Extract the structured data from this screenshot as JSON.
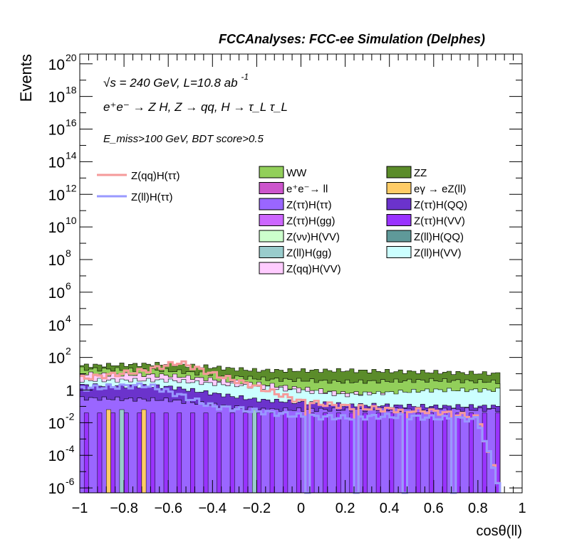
{
  "header": {
    "title": "FCCAnalyses: FCC-ee Simulation (Delphes)",
    "ecm_line": "√s = 240 GeV, L=10.8 ab",
    "ecm_line_sup": "-1",
    "process_line": "e⁺e⁻ → Z H, Z → qq, H → τ_L τ_L",
    "cut_line": "E_miss>100 GeV, BDT score>0.5"
  },
  "chart_data": {
    "type": "histogram",
    "xlabel": "cosθ(ll)",
    "ylabel": "Events",
    "xlim": [
      -1,
      1
    ],
    "ylim": [
      1e-06,
      1e+21
    ],
    "log_y": true,
    "x_ticks": [
      "−1",
      "−0.8",
      "−0.6",
      "−0.4",
      "−0.2",
      "0",
      "0.2",
      "0.4",
      "0.6",
      "0.8",
      "1"
    ],
    "y_ticks": [
      {
        "base": "10",
        "exp": "20"
      },
      {
        "base": "10",
        "exp": "18"
      },
      {
        "base": "10",
        "exp": "16"
      },
      {
        "base": "10",
        "exp": "14"
      },
      {
        "base": "10",
        "exp": "12"
      },
      {
        "base": "10",
        "exp": "10"
      },
      {
        "base": "10",
        "exp": "8"
      },
      {
        "base": "10",
        "exp": "6"
      },
      {
        "base": "10",
        "exp": "4"
      },
      {
        "base": "10",
        "exp": "2"
      },
      {
        "base": "1",
        "exp": ""
      },
      {
        "base": "10",
        "exp": "-2"
      },
      {
        "base": "10",
        "exp": "-4"
      },
      {
        "base": "10",
        "exp": "-6"
      }
    ],
    "bin_edges_range": [
      -1,
      0.9
    ],
    "stack_log10_upper": [
      {
        "name": "ZZ",
        "color": "#5b8c2a",
        "at_x": [
          [
            -1.0,
            1.5
          ],
          [
            -0.6,
            1.6
          ],
          [
            -0.2,
            1.2
          ],
          [
            0.2,
            1.2
          ],
          [
            0.6,
            1.1
          ],
          [
            0.9,
            1.0
          ]
        ]
      },
      {
        "name": "WW",
        "color": "#92cf5a",
        "at_x": [
          [
            -1.0,
            1.3
          ],
          [
            -0.6,
            1.2
          ],
          [
            -0.2,
            0.7
          ],
          [
            0.2,
            0.5
          ],
          [
            0.6,
            0.6
          ],
          [
            0.9,
            0.5
          ]
        ]
      },
      {
        "name": "Z(qq)H(VV)",
        "color": "#ffccff",
        "at_x": [
          [
            -1.0,
            1.0
          ],
          [
            -0.6,
            0.9
          ],
          [
            -0.2,
            0.4
          ],
          [
            0.2,
            -0.2
          ],
          [
            0.6,
            -0.3
          ],
          [
            0.9,
            -0.3
          ]
        ]
      },
      {
        "name": "Z(ll)H(VV)",
        "color": "#ccffff",
        "at_x": [
          [
            -1.0,
            0.6
          ],
          [
            -0.6,
            0.6
          ],
          [
            -0.2,
            0.2
          ],
          [
            0.2,
            -0.3
          ],
          [
            0.6,
            0.0
          ],
          [
            0.9,
            0.0
          ]
        ]
      },
      {
        "name": "Z(ττ)H(QQ)",
        "color": "#6b33cc",
        "at_x": [
          [
            -1.0,
            0.3
          ],
          [
            -0.6,
            0.2
          ],
          [
            -0.2,
            -0.6
          ],
          [
            0.2,
            -0.9
          ],
          [
            0.6,
            -1.0
          ],
          [
            0.9,
            -1.0
          ]
        ]
      },
      {
        "name": "Z(ττ)H(ττ)",
        "color": "#9a66ff",
        "at_x": [
          [
            -1.0,
            -0.5
          ],
          [
            -0.6,
            -0.6
          ],
          [
            -0.2,
            -1.2
          ],
          [
            0.2,
            -1.2
          ],
          [
            0.6,
            -1.2
          ],
          [
            0.9,
            -1.2
          ]
        ]
      }
    ],
    "series_log10": [
      {
        "name": "Z(qq)H(ττ)",
        "color": "#f59a9a",
        "at_x": [
          [
            -1.0,
            0.7
          ],
          [
            -0.7,
            1.2
          ],
          [
            -0.55,
            1.7
          ],
          [
            -0.4,
            1.0
          ],
          [
            -0.2,
            0.2
          ],
          [
            0.0,
            -0.7
          ],
          [
            0.2,
            -1.0
          ],
          [
            0.4,
            -1.2
          ],
          [
            0.6,
            -1.3
          ],
          [
            0.8,
            -1.7
          ],
          [
            0.9,
            -6.0
          ]
        ]
      },
      {
        "name": "Z(ll)H(ττ)",
        "color": "#9999ff",
        "at_x": [
          [
            -1.0,
            0.1
          ],
          [
            -0.7,
            0.3
          ],
          [
            -0.55,
            -0.3
          ],
          [
            -0.4,
            -1.0
          ],
          [
            -0.2,
            -1.3
          ],
          [
            0.0,
            -1.6
          ],
          [
            0.2,
            -1.7
          ],
          [
            0.4,
            -1.6
          ],
          [
            0.6,
            -1.7
          ],
          [
            0.8,
            -1.8
          ],
          [
            0.9,
            -6.0
          ]
        ]
      }
    ],
    "legend_lines": [
      {
        "label": "Z(qq)H(ττ)",
        "color": "#f59a9a"
      },
      {
        "label": "Z(ll)H(ττ)",
        "color": "#9999ff"
      }
    ],
    "legend_boxes": [
      {
        "label": "WW",
        "color": "#92cf5a"
      },
      {
        "label": "ZZ",
        "color": "#5b8c2a"
      },
      {
        "label": "e⁺e⁻→ ll",
        "color": "#cc55cc"
      },
      {
        "label": "eγ → eZ(ll)",
        "color": "#ffcc66"
      },
      {
        "label": "Z(ττ)H(ττ)",
        "color": "#9a66ff"
      },
      {
        "label": "Z(ττ)H(QQ)",
        "color": "#6b33cc"
      },
      {
        "label": "Z(ττ)H(gg)",
        "color": "#cc66ff"
      },
      {
        "label": "Z(ττ)H(VV)",
        "color": "#9933ff"
      },
      {
        "label": "Z(νν)H(VV)",
        "color": "#ccffcc"
      },
      {
        "label": "Z(ll)H(QQ)",
        "color": "#5f9999"
      },
      {
        "label": "Z(ll)H(gg)",
        "color": "#99cccc"
      },
      {
        "label": "Z(ll)H(VV)",
        "color": "#ccffff"
      },
      {
        "label": "Z(qq)H(VV)",
        "color": "#ffccff"
      }
    ]
  }
}
